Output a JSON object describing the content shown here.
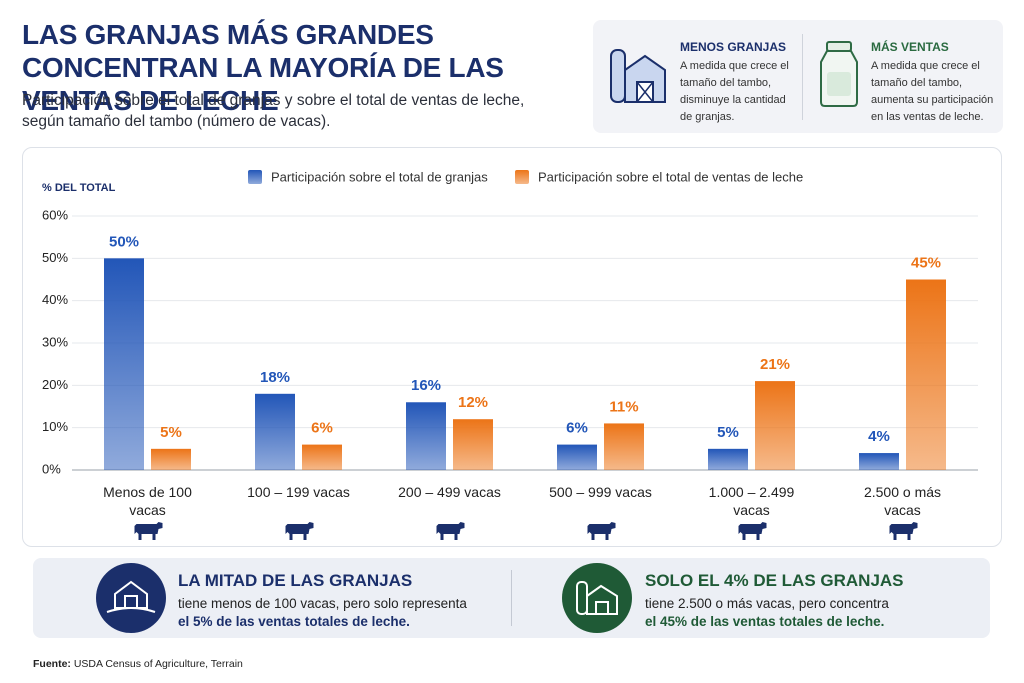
{
  "header": {
    "title": "LAS GRANJAS MÁS GRANDES CONCENTRAN LA MAYORÍA DE LAS VENTAS DE LECHE",
    "subtitle": "Participación sobre el total de granjas y sobre el total de ventas de leche, según tamaño del tambo (número de vacas)."
  },
  "info_cards": [
    {
      "title": "MENOS GRANJAS",
      "text": "A medida que crece el tamaño del tambo, disminuye la cantidad de granjas."
    },
    {
      "title": "MÁS VENTAS",
      "text": "A medida que crece el tamaño del tambo, aumenta su participación en las ventas de leche."
    }
  ],
  "chart_data": {
    "type": "bar",
    "y_label": "% DEL TOTAL",
    "categories": [
      "Menos de 100 vacas",
      "100 – 199 vacas",
      "200 – 499 vacas",
      "500 – 999 vacas",
      "1.000 – 2.499 vacas",
      "2.500 o más vacas"
    ],
    "series": [
      {
        "name": "Participación sobre el total de granjas",
        "color": "#2256b8",
        "values": [
          50,
          18,
          16,
          6,
          5,
          4
        ],
        "value_labels": [
          "50%",
          "18%",
          "16%",
          "6%",
          "5%",
          "4%"
        ]
      },
      {
        "name": "Participación sobre el total de ventas de leche",
        "color": "#ec7417",
        "values": [
          5,
          6,
          12,
          11,
          21,
          45
        ],
        "value_labels": [
          "5%",
          "6%",
          "12%",
          "11%",
          "21%",
          "45%"
        ]
      }
    ],
    "ylim": [
      0,
      60
    ],
    "yticks": [
      {
        "value": 0,
        "label": "0%"
      },
      {
        "value": 10,
        "label": "10%"
      },
      {
        "value": 20,
        "label": "20%"
      },
      {
        "value": 30,
        "label": "30%"
      },
      {
        "value": 40,
        "label": "40%"
      },
      {
        "value": 50,
        "label": "50%"
      },
      {
        "value": 60,
        "label": "60%"
      }
    ],
    "grid": true
  },
  "callouts": [
    {
      "title": "LA MITAD DE LAS GRANJAS",
      "text": "tiene menos de 100 vacas, pero solo representa",
      "highlight": "el 5% de las ventas totales de leche."
    },
    {
      "title": "SOLO EL 4% DE LAS GRANJAS",
      "text": "tiene 2.500 o más vacas, pero concentra",
      "highlight": "el 45% de las ventas totales de leche."
    }
  ],
  "source": {
    "label": "Fuente:",
    "text": "USDA Census of Agriculture, Terrain"
  }
}
